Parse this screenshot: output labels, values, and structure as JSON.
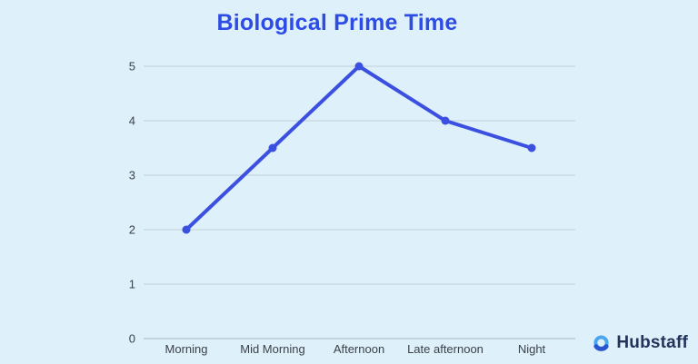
{
  "title": "Biological Prime Time",
  "brand": {
    "name": "Hubstaff",
    "icon": "hubstaff-logo-icon"
  },
  "colors": {
    "background": "#def0f9",
    "title": "#2d4ce6",
    "line": "#3b50e0",
    "gridline": "#c3cfd7",
    "axis_line": "#a9b6bf",
    "tick_text": "#3a4149",
    "brand_text": "#22345a",
    "logo_light_blue": "#4ba6f0",
    "logo_dark_blue": "#2b55cc"
  },
  "chart_data": {
    "type": "line",
    "title": "Biological Prime Time",
    "categories": [
      "Morning",
      "Mid Morning",
      "Afternoon",
      "Late afternoon",
      "Night"
    ],
    "values": [
      2,
      3.5,
      5,
      4,
      3.5
    ],
    "xlabel": "",
    "ylabel": "",
    "ylim": [
      0,
      5
    ],
    "yticks": [
      0,
      1,
      2,
      3,
      4,
      5
    ],
    "grid": true,
    "legend": "none",
    "marker": "circle",
    "line_width": 4
  }
}
